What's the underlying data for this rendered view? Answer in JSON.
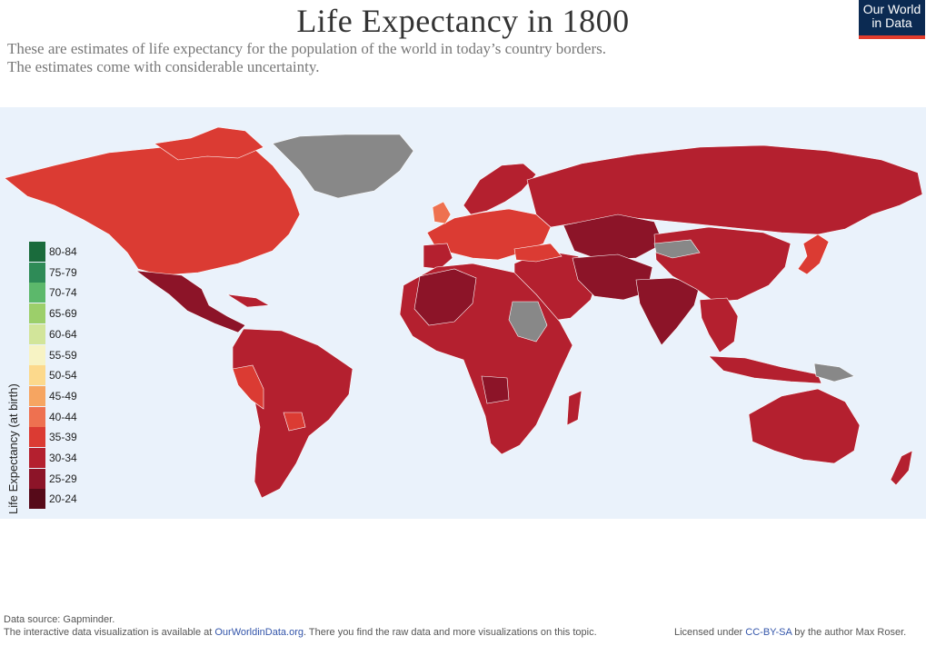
{
  "header": {
    "title": "Life Expectancy in 1800",
    "subtitle_line1": "These are estimates of life expectancy for the population of the world in today’s country borders.",
    "subtitle_line2": "The estimates come with considerable uncertainty.",
    "logo_line1": "Our World",
    "logo_line2": "in Data"
  },
  "legend": {
    "title": "Life Expectancy (at birth)",
    "items": [
      {
        "label": "80-84",
        "color": "#1a6b3c"
      },
      {
        "label": "75-79",
        "color": "#2e8b57"
      },
      {
        "label": "70-74",
        "color": "#5cb86b"
      },
      {
        "label": "65-69",
        "color": "#9ccf6a"
      },
      {
        "label": "60-64",
        "color": "#d2e59a"
      },
      {
        "label": "55-59",
        "color": "#f7f3c4"
      },
      {
        "label": "50-54",
        "color": "#fcd98c"
      },
      {
        "label": "45-49",
        "color": "#f6a561"
      },
      {
        "label": "40-44",
        "color": "#ee7150"
      },
      {
        "label": "35-39",
        "color": "#db3b33"
      },
      {
        "label": "30-34",
        "color": "#b4202f"
      },
      {
        "label": "25-29",
        "color": "#8c1428"
      },
      {
        "label": "20-24",
        "color": "#560a19"
      }
    ]
  },
  "map_colors": {
    "ocean": "#eaf2fb",
    "no_data": "#888888",
    "band_35_39": "#db3b33",
    "band_40_44": "#ee7150",
    "band_30_34": "#b4202f",
    "band_25_29": "#8c1428",
    "band_20_24": "#560a19"
  },
  "footer": {
    "source": "Data source: Gapminder.",
    "line2_prefix": "The interactive data visualization is available at ",
    "link": "OurWorldinData.org",
    "line2_suffix": ". There you find the raw data and more visualizations on this topic.",
    "license_prefix": "Licensed under ",
    "license_link": "CC-BY-SA",
    "license_suffix": " by the author Max Roser."
  }
}
